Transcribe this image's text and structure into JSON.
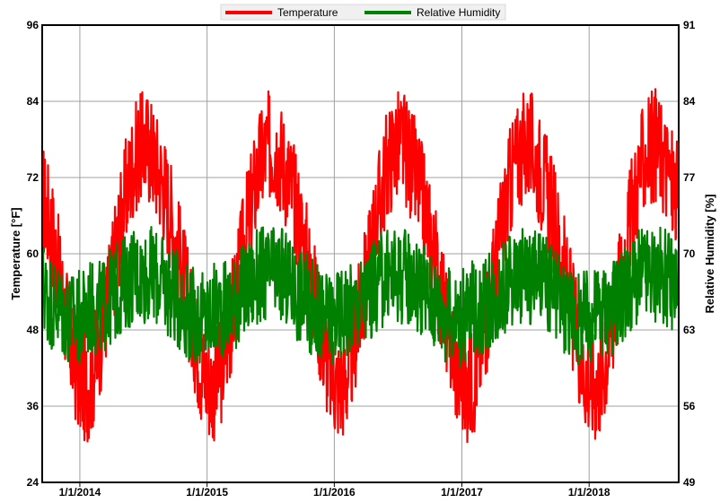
{
  "chart_data": {
    "type": "line",
    "legend": {
      "placement": "top-center"
    },
    "grid": true,
    "x_axis": {
      "range": [
        "2013-09-15",
        "2018-09-15"
      ],
      "ticks": [
        {
          "date": "2014-01-01",
          "label": "1/1/2014"
        },
        {
          "date": "2015-01-01",
          "label": "1/1/2015"
        },
        {
          "date": "2016-01-01",
          "label": "1/1/2016"
        },
        {
          "date": "2017-01-01",
          "label": "1/1/2017"
        },
        {
          "date": "2018-01-01",
          "label": "1/1/2018"
        }
      ]
    },
    "y_left": {
      "label": "Temperature [°F]",
      "range": [
        24,
        96
      ],
      "ticks": [
        24,
        36,
        48,
        60,
        72,
        84,
        96
      ]
    },
    "y_right": {
      "label": "Relative Humidity [%]",
      "range": [
        49,
        91
      ],
      "ticks": [
        49,
        56,
        63,
        70,
        77,
        84,
        91
      ]
    },
    "series": [
      {
        "name": "Temperature",
        "axis": "left",
        "color": "#ff0000",
        "points": [
          [
            "2013-09-15",
            69
          ],
          [
            "2013-10-01",
            66
          ],
          [
            "2013-10-15",
            63
          ],
          [
            "2013-11-01",
            57
          ],
          [
            "2013-11-15",
            52
          ],
          [
            "2013-12-01",
            47
          ],
          [
            "2013-12-15",
            43
          ],
          [
            "2014-01-01",
            40
          ],
          [
            "2014-01-15",
            39
          ],
          [
            "2014-02-01",
            40
          ],
          [
            "2014-02-15",
            43
          ],
          [
            "2014-03-01",
            47
          ],
          [
            "2014-03-15",
            51
          ],
          [
            "2014-04-01",
            56
          ],
          [
            "2014-04-15",
            61
          ],
          [
            "2014-05-01",
            66
          ],
          [
            "2014-05-15",
            70
          ],
          [
            "2014-06-01",
            74
          ],
          [
            "2014-06-15",
            76
          ],
          [
            "2014-07-01",
            77
          ],
          [
            "2014-07-15",
            77
          ],
          [
            "2014-08-01",
            75
          ],
          [
            "2014-08-15",
            73
          ],
          [
            "2014-09-01",
            70
          ],
          [
            "2014-09-15",
            67
          ],
          [
            "2014-10-01",
            63
          ],
          [
            "2014-10-15",
            59
          ],
          [
            "2014-11-01",
            54
          ],
          [
            "2014-11-15",
            50
          ],
          [
            "2014-12-01",
            46
          ],
          [
            "2014-12-15",
            42
          ],
          [
            "2015-01-01",
            40
          ],
          [
            "2015-01-15",
            39
          ],
          [
            "2015-02-01",
            40
          ],
          [
            "2015-02-15",
            43
          ],
          [
            "2015-03-01",
            47
          ],
          [
            "2015-03-15",
            51
          ],
          [
            "2015-04-01",
            56
          ],
          [
            "2015-04-15",
            61
          ],
          [
            "2015-05-01",
            66
          ],
          [
            "2015-05-15",
            70
          ],
          [
            "2015-06-01",
            74
          ],
          [
            "2015-06-15",
            76
          ],
          [
            "2015-07-01",
            77
          ],
          [
            "2015-07-15",
            77
          ],
          [
            "2015-08-01",
            75
          ],
          [
            "2015-08-15",
            73
          ],
          [
            "2015-09-01",
            70
          ],
          [
            "2015-09-15",
            67
          ],
          [
            "2015-10-01",
            63
          ],
          [
            "2015-10-15",
            59
          ],
          [
            "2015-11-01",
            54
          ],
          [
            "2015-11-15",
            50
          ],
          [
            "2015-12-01",
            46
          ],
          [
            "2015-12-15",
            42
          ],
          [
            "2016-01-01",
            40
          ],
          [
            "2016-01-15",
            39
          ],
          [
            "2016-02-01",
            40
          ],
          [
            "2016-02-15",
            43
          ],
          [
            "2016-03-01",
            47
          ],
          [
            "2016-03-15",
            51
          ],
          [
            "2016-04-01",
            56
          ],
          [
            "2016-04-15",
            61
          ],
          [
            "2016-05-01",
            66
          ],
          [
            "2016-05-15",
            70
          ],
          [
            "2016-06-01",
            74
          ],
          [
            "2016-06-15",
            76
          ],
          [
            "2016-07-01",
            77
          ],
          [
            "2016-07-15",
            77
          ],
          [
            "2016-08-01",
            75
          ],
          [
            "2016-08-15",
            73
          ],
          [
            "2016-09-01",
            70
          ],
          [
            "2016-09-15",
            67
          ],
          [
            "2016-10-01",
            63
          ],
          [
            "2016-10-15",
            59
          ],
          [
            "2016-11-01",
            54
          ],
          [
            "2016-11-15",
            50
          ],
          [
            "2016-12-01",
            46
          ],
          [
            "2016-12-15",
            42
          ],
          [
            "2017-01-01",
            40
          ],
          [
            "2017-01-15",
            39
          ],
          [
            "2017-02-01",
            40
          ],
          [
            "2017-02-15",
            43
          ],
          [
            "2017-03-01",
            47
          ],
          [
            "2017-03-15",
            51
          ],
          [
            "2017-04-01",
            56
          ],
          [
            "2017-04-15",
            61
          ],
          [
            "2017-05-01",
            66
          ],
          [
            "2017-05-15",
            70
          ],
          [
            "2017-06-01",
            74
          ],
          [
            "2017-06-15",
            76
          ],
          [
            "2017-07-01",
            77
          ],
          [
            "2017-07-15",
            77
          ],
          [
            "2017-08-01",
            75
          ],
          [
            "2017-08-15",
            73
          ],
          [
            "2017-09-01",
            70
          ],
          [
            "2017-09-15",
            67
          ],
          [
            "2017-10-01",
            63
          ],
          [
            "2017-10-15",
            59
          ],
          [
            "2017-11-01",
            54
          ],
          [
            "2017-11-15",
            50
          ],
          [
            "2017-12-01",
            46
          ],
          [
            "2017-12-15",
            42
          ],
          [
            "2018-01-01",
            40
          ],
          [
            "2018-01-15",
            39
          ],
          [
            "2018-02-01",
            40
          ],
          [
            "2018-02-15",
            43
          ],
          [
            "2018-03-01",
            47
          ],
          [
            "2018-03-15",
            51
          ],
          [
            "2018-04-01",
            56
          ],
          [
            "2018-04-15",
            61
          ],
          [
            "2018-05-01",
            66
          ],
          [
            "2018-05-15",
            70
          ],
          [
            "2018-06-01",
            74
          ],
          [
            "2018-06-15",
            76
          ],
          [
            "2018-07-01",
            77
          ],
          [
            "2018-07-15",
            77
          ],
          [
            "2018-08-01",
            75
          ],
          [
            "2018-08-15",
            73
          ],
          [
            "2018-09-01",
            70
          ],
          [
            "2018-09-15",
            68
          ]
        ]
      },
      {
        "name": "Relative Humidity",
        "axis": "right",
        "color": "#008000",
        "points": [
          [
            "2013-09-15",
            67
          ],
          [
            "2013-10-01",
            66
          ],
          [
            "2013-11-01",
            65
          ],
          [
            "2013-12-01",
            64
          ],
          [
            "2014-01-01",
            64
          ],
          [
            "2014-02-01",
            65
          ],
          [
            "2014-03-01",
            65
          ],
          [
            "2014-04-01",
            66
          ],
          [
            "2014-05-01",
            67
          ],
          [
            "2014-06-01",
            68
          ],
          [
            "2014-07-01",
            68
          ],
          [
            "2014-08-01",
            68
          ],
          [
            "2014-09-01",
            67
          ],
          [
            "2014-10-01",
            66
          ],
          [
            "2014-11-01",
            65
          ],
          [
            "2014-12-01",
            64
          ],
          [
            "2015-01-01",
            64
          ],
          [
            "2015-02-01",
            65
          ],
          [
            "2015-03-01",
            65
          ],
          [
            "2015-04-01",
            66
          ],
          [
            "2015-05-01",
            67
          ],
          [
            "2015-06-01",
            68
          ],
          [
            "2015-07-01",
            68
          ],
          [
            "2015-08-01",
            68
          ],
          [
            "2015-09-01",
            67
          ],
          [
            "2015-10-01",
            66
          ],
          [
            "2015-11-01",
            65
          ],
          [
            "2015-12-01",
            64
          ],
          [
            "2016-01-01",
            64
          ],
          [
            "2016-02-01",
            65
          ],
          [
            "2016-03-01",
            65
          ],
          [
            "2016-04-01",
            66
          ],
          [
            "2016-05-01",
            67
          ],
          [
            "2016-06-01",
            68
          ],
          [
            "2016-07-01",
            68
          ],
          [
            "2016-08-01",
            68
          ],
          [
            "2016-09-01",
            67
          ],
          [
            "2016-10-01",
            66
          ],
          [
            "2016-11-01",
            65
          ],
          [
            "2016-12-01",
            64
          ],
          [
            "2017-01-01",
            64
          ],
          [
            "2017-02-01",
            65
          ],
          [
            "2017-03-01",
            65
          ],
          [
            "2017-04-01",
            66
          ],
          [
            "2017-05-01",
            67
          ],
          [
            "2017-06-01",
            68
          ],
          [
            "2017-07-01",
            68
          ],
          [
            "2017-08-01",
            68
          ],
          [
            "2017-09-01",
            67
          ],
          [
            "2017-10-01",
            66
          ],
          [
            "2017-11-01",
            65
          ],
          [
            "2017-12-01",
            64
          ],
          [
            "2018-01-01",
            64
          ],
          [
            "2018-02-01",
            65
          ],
          [
            "2018-03-01",
            65
          ],
          [
            "2018-04-01",
            66
          ],
          [
            "2018-05-01",
            67
          ],
          [
            "2018-06-01",
            68
          ],
          [
            "2018-07-01",
            68
          ],
          [
            "2018-08-01",
            68
          ],
          [
            "2018-09-15",
            67
          ]
        ]
      }
    ]
  }
}
